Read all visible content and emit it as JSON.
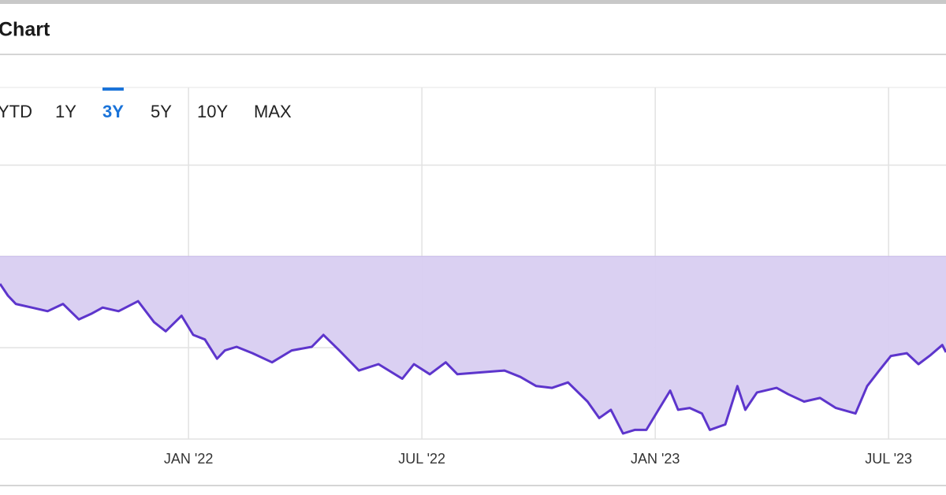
{
  "header": {
    "title": "Chart"
  },
  "range_buttons": [
    {
      "label": "YTD",
      "active": false
    },
    {
      "label": "1Y",
      "active": false
    },
    {
      "label": "3Y",
      "active": true
    },
    {
      "label": "5Y",
      "active": false
    },
    {
      "label": "10Y",
      "active": false
    },
    {
      "label": "MAX",
      "active": false
    }
  ],
  "chart_data": {
    "type": "area",
    "x": [
      2021.596,
      2021.613,
      2021.63,
      2021.664,
      2021.698,
      2021.731,
      2021.765,
      2021.791,
      2021.816,
      2021.85,
      2021.892,
      2021.926,
      2021.951,
      2021.985,
      2022.01,
      2022.035,
      2022.061,
      2022.078,
      2022.103,
      2022.137,
      2022.179,
      2022.221,
      2022.264,
      2022.289,
      2022.323,
      2022.365,
      2022.407,
      2022.458,
      2022.483,
      2022.517,
      2022.551,
      2022.576,
      2022.627,
      2022.677,
      2022.711,
      2022.745,
      2022.779,
      2022.813,
      2022.855,
      2022.88,
      2022.905,
      2022.931,
      2022.956,
      2022.981,
      2023.007,
      2023.032,
      2023.049,
      2023.074,
      2023.1,
      2023.117,
      2023.15,
      2023.176,
      2023.193,
      2023.218,
      2023.26,
      2023.285,
      2023.319,
      2023.353,
      2023.387,
      2023.429,
      2023.454,
      2023.48,
      2023.505,
      2023.539,
      2023.564,
      2023.59,
      2023.615,
      2023.623
    ],
    "series": [
      {
        "color": "#5d35cc",
        "fill": "#d8cdf1",
        "values": [
          -3.0,
          -4.3,
          -5.2,
          -5.6,
          -6.0,
          -5.2,
          -6.9,
          -6.3,
          -5.6,
          -6.0,
          -4.9,
          -7.2,
          -8.2,
          -6.5,
          -8.6,
          -9.1,
          -11.2,
          -10.3,
          -9.9,
          -10.6,
          -11.6,
          -10.3,
          -9.9,
          -8.6,
          -10.3,
          -12.5,
          -11.8,
          -13.4,
          -11.8,
          -12.9,
          -11.6,
          -12.9,
          -12.7,
          -12.5,
          -13.2,
          -14.2,
          -14.4,
          -13.8,
          -15.9,
          -17.7,
          -16.8,
          -19.4,
          -19.0,
          -19.0,
          -16.8,
          -14.7,
          -16.8,
          -16.6,
          -17.2,
          -19.0,
          -18.4,
          -14.2,
          -16.8,
          -14.9,
          -14.4,
          -15.1,
          -15.9,
          -15.5,
          -16.6,
          -17.2,
          -14.2,
          -12.5,
          -10.9,
          -10.6,
          -11.8,
          -10.8,
          -9.7,
          -10.5
        ]
      }
    ],
    "xlim": [
      2021.596,
      2023.623
    ],
    "xticks": [
      {
        "value": 2022,
        "label": "JAN '22"
      },
      {
        "value": 2022.5,
        "label": "JUL '22"
      },
      {
        "value": 2023,
        "label": "JAN '23"
      },
      {
        "value": 2023.5,
        "label": "JUL '23"
      }
    ],
    "ylim": [
      -20,
      18.5
    ],
    "yticks": [
      -20,
      -10,
      0,
      10
    ],
    "grid": true
  }
}
